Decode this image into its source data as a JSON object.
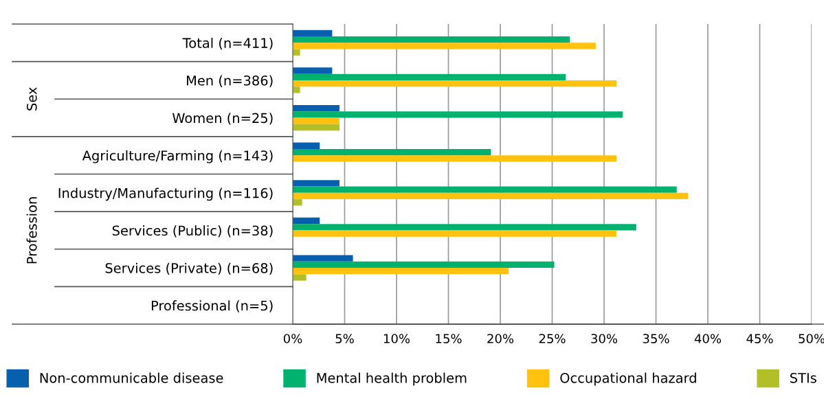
{
  "chart_data": {
    "type": "bar",
    "orientation": "horizontal",
    "categories": [
      "Total (n=411)",
      "Men (n=386)",
      "Women (n=25)",
      "Agriculture/Farming (n=143)",
      "Industry/Manufacturing (n=116)",
      "Services (Public) (n=38)",
      "Services (Private) (n=68)",
      "Professional (n=5)"
    ],
    "series": [
      {
        "name": "Non-communicable disease",
        "color": "#075fad",
        "values": [
          3.8,
          3.8,
          4.5,
          2.6,
          4.5,
          2.6,
          5.8,
          null
        ]
      },
      {
        "name": "Mental health problem",
        "color": "#00b26e",
        "values": [
          26.7,
          26.3,
          31.8,
          19.1,
          37.0,
          33.1,
          25.2,
          null
        ]
      },
      {
        "name": "Occupational hazard",
        "color": "#ffc20e",
        "values": [
          29.2,
          31.2,
          4.5,
          31.2,
          38.1,
          31.2,
          20.8,
          null
        ]
      },
      {
        "name": "STIs",
        "color": "#b3bf26",
        "values": [
          0.7,
          0.7,
          4.5,
          null,
          0.9,
          null,
          1.3,
          null
        ]
      }
    ],
    "xlim": [
      0,
      50
    ],
    "xticks": [
      {
        "value": 0,
        "label": "0%"
      },
      {
        "value": 5,
        "label": "5%"
      },
      {
        "value": 10,
        "label": "10%"
      },
      {
        "value": 15,
        "label": "15%"
      },
      {
        "value": 20,
        "label": "20%"
      },
      {
        "value": 25,
        "label": "25%"
      },
      {
        "value": 30,
        "label": "30%"
      },
      {
        "value": 35,
        "label": "35%"
      },
      {
        "value": 40,
        "label": "40%"
      },
      {
        "value": 45,
        "label": "45%"
      },
      {
        "value": 50,
        "label": "50%"
      }
    ],
    "annotations": [
      "Sex",
      "Profession"
    ],
    "grid": "x",
    "legend": "bottom"
  }
}
